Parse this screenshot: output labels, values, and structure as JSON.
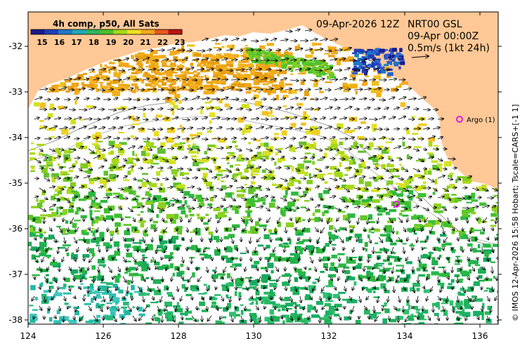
{
  "colorbar": {
    "title": "4h comp, p50, All Sats",
    "ticks": [
      "15",
      "16",
      "17",
      "18",
      "19",
      "20",
      "21",
      "22",
      "23"
    ],
    "colors": [
      "#1a1a8c",
      "#1f3fb8",
      "#1f78c8",
      "#20a8b8",
      "#2cb860",
      "#4cc02c",
      "#a8d818",
      "#f0e020",
      "#f5a81c",
      "#e8581c",
      "#b81414"
    ]
  },
  "header": {
    "date": "09-Apr-2026 12Z",
    "product": "NRT00 GSL",
    "time": "09-Apr 00:00Z",
    "scale": "0.5m/s (1kt 24h)"
  },
  "argo": {
    "label": "Argo (1)",
    "color": "#e020d8"
  },
  "axes": {
    "x_ticks": [
      "124",
      "126",
      "128",
      "130",
      "132",
      "134",
      "136"
    ],
    "y_ticks": [
      "-32",
      "-33",
      "-34",
      "-35",
      "-36",
      "-37",
      "-38"
    ]
  },
  "credit": "© IMOS 12-Apr-2026 15:58 Hobart; Tscale=CARS+[-1 1]",
  "palette": {
    "land": "#ffc896",
    "sea": "#ffffff"
  }
}
